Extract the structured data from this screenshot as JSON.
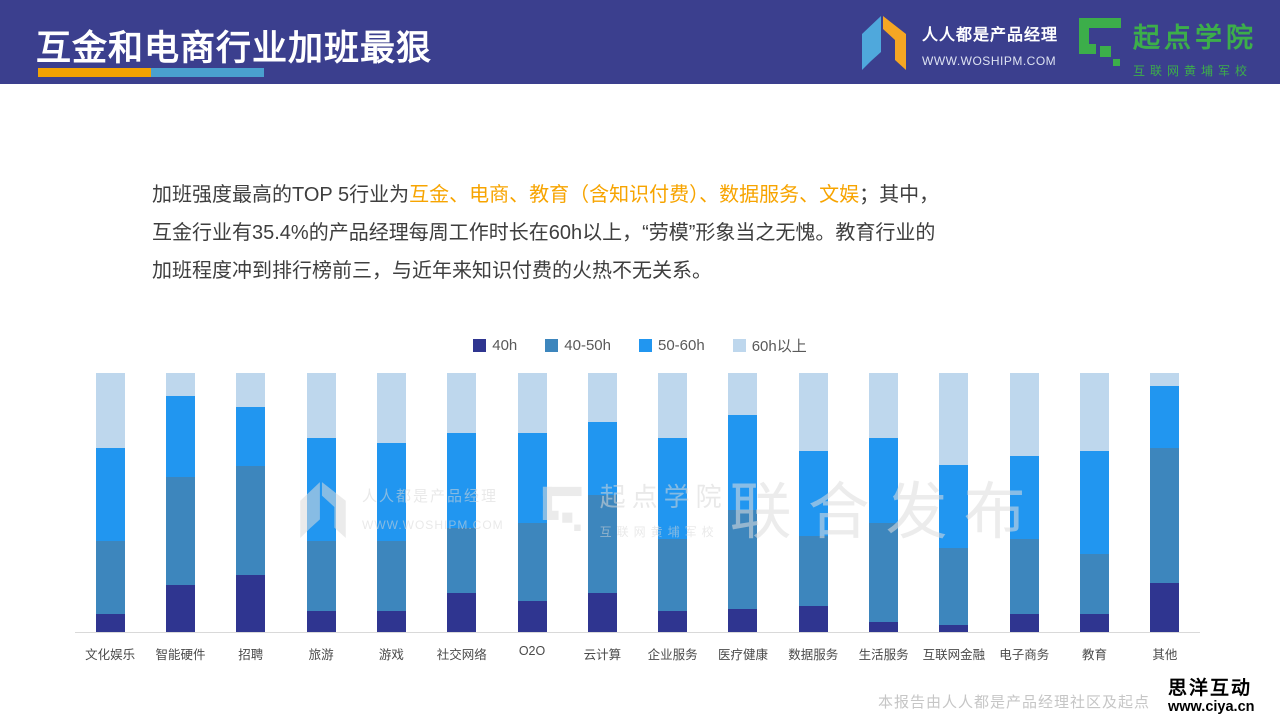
{
  "header": {
    "title": "互金和电商行业加班最狠",
    "woshipm": {
      "name": "人人都是产品经理",
      "url": "WWW.WOSHIPM.COM"
    },
    "qidian": {
      "name": "起点学院",
      "subtitle": "互联网黄埔军校"
    }
  },
  "intro": {
    "prefix": "加班强度最高的TOP 5行业为",
    "highlight": "互金、电商、教育（含知识付费）、数据服务、文娱",
    "suffix": "；其中，",
    "line2": "互金行业有35.4%的产品经理每周工作时长在60h以上，“劳模”形象当之无愧。教育行业的",
    "line3": "加班程度冲到排行榜前三，与近年来知识付费的火热不无关系。"
  },
  "chart_data": {
    "type": "bar",
    "stacked": true,
    "percent_stacked": true,
    "title": "",
    "xlabel": "",
    "ylabel": "",
    "ylim": [
      0,
      100
    ],
    "grid": false,
    "legend_position": "top-center",
    "categories": [
      "文化娱乐",
      "智能硬件",
      "招聘",
      "旅游",
      "游戏",
      "社交网络",
      "O2O",
      "云计算",
      "企业服务",
      "医疗健康",
      "数据服务",
      "生活服务",
      "互联网金融",
      "电子商务",
      "教育",
      "其他"
    ],
    "series": [
      {
        "name": "40h",
        "color": "#2F3590",
        "values": [
          7,
          18,
          22,
          8,
          8,
          15,
          12,
          15,
          8,
          9,
          10,
          4,
          2.6,
          7,
          7,
          19
        ]
      },
      {
        "name": "40-50h",
        "color": "#3D86BD",
        "values": [
          28,
          42,
          42,
          27,
          27,
          25,
          30,
          38,
          28,
          38,
          27,
          38,
          30,
          29,
          23,
          52
        ]
      },
      {
        "name": "50-60h",
        "color": "#2196F0",
        "values": [
          36,
          31,
          23,
          40,
          38,
          37,
          35,
          28,
          39,
          37,
          33,
          33,
          32,
          32,
          40,
          24
        ]
      },
      {
        "name": "60h以上",
        "color": "#BED7ED",
        "values": [
          29,
          9,
          13,
          25,
          27,
          23,
          23,
          19,
          25,
          16,
          30,
          25,
          35.4,
          32,
          30,
          5
        ]
      }
    ]
  },
  "watermark": {
    "woshipm_name": "人人都是产品经理",
    "woshipm_url": "WWW.WOSHIPM.COM",
    "qidian_name": "起点学院",
    "qidian_subtitle": "互联网黄埔军校",
    "joint": "联合发布"
  },
  "footer": {
    "note": "本报告由人人都是产品经理社区及起点",
    "ciya_name": "思洋互动",
    "ciya_url": "www.ciya.cn"
  },
  "colors": {
    "header_bg": "#3B3F8E",
    "underline_orange": "#F2A202",
    "underline_blue": "#4AA0CF",
    "highlight_text": "#F7A400",
    "logo_blue": "#4FA8DC",
    "logo_orange": "#F5A623",
    "qidian_green": "#3CAE4A",
    "axis_line": "#D9D9D9"
  }
}
